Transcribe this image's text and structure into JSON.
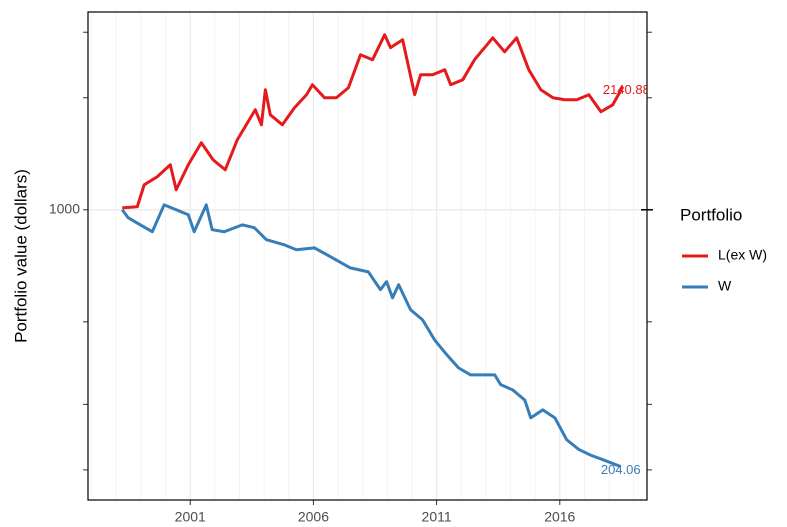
{
  "chart_data": {
    "type": "line",
    "y_label": "Portfolio value (dollars)",
    "legend_title": "Portfolio",
    "log_y": true,
    "grid": true,
    "legend": "right",
    "end_labels": true,
    "xlim": [
      1996.85,
      2019.54
    ],
    "xticks": [
      2001,
      2006,
      2011,
      2016
    ],
    "ylim": [
      166,
      3400
    ],
    "yticks": [
      1000
    ],
    "yminor_ticks": [
      200,
      300,
      500,
      2000,
      3000
    ],
    "series": [
      {
        "name": "L(ex W)",
        "color": "#e41a1c",
        "x": [
          1998.24,
          1998.85,
          1999.13,
          1999.66,
          2000.19,
          2000.43,
          2000.92,
          2001.45,
          2001.93,
          2002.42,
          2002.91,
          2003.64,
          2003.89,
          2004.05,
          2004.25,
          2004.74,
          2005.23,
          2005.72,
          2005.96,
          2006.45,
          2006.93,
          2007.42,
          2007.91,
          2008.4,
          2008.89,
          2009.13,
          2009.62,
          2010.11,
          2010.35,
          2010.84,
          2011.33,
          2011.57,
          2012.06,
          2012.54,
          2013.28,
          2013.76,
          2014.25,
          2014.74,
          2015.23,
          2015.72,
          2016.2,
          2016.69,
          2017.18,
          2017.67,
          2018.15,
          2018.56
        ],
        "values": [
          1012,
          1019,
          1167,
          1227,
          1321,
          1132,
          1321,
          1514,
          1362,
          1281,
          1542,
          1857,
          1692,
          2102,
          1800,
          1692,
          1880,
          2038,
          2168,
          2000,
          2000,
          2128,
          2610,
          2531,
          2953,
          2727,
          2864,
          2038,
          2306,
          2306,
          2379,
          2168,
          2235,
          2531,
          2898,
          2658,
          2898,
          2379,
          2102,
          2000,
          1975,
          1975,
          2038,
          1834,
          1915,
          2140.88
        ]
      },
      {
        "name": "W",
        "color": "#377eb8",
        "x": [
          1998.24,
          1998.48,
          1998.97,
          1999.46,
          1999.94,
          2000.43,
          2000.92,
          2001.16,
          2001.65,
          2001.89,
          2002.38,
          2003.11,
          2003.6,
          2004.09,
          2004.82,
          2005.31,
          2006.04,
          2006.77,
          2007.5,
          2008.23,
          2008.72,
          2008.97,
          2009.21,
          2009.46,
          2009.94,
          2010.43,
          2010.92,
          2011.41,
          2011.89,
          2012.38,
          2012.87,
          2013.36,
          2013.6,
          2014.09,
          2014.58,
          2014.82,
          2015.31,
          2015.8,
          2016.28,
          2016.77,
          2017.26,
          2017.75,
          2018.48
        ],
        "values": [
          1000,
          952,
          911,
          873,
          1031,
          1000,
          970,
          873,
          1031,
          884,
          873,
          911,
          895,
          831,
          805,
          781,
          790,
          743,
          698,
          681,
          610,
          641,
          580,
          629,
          539,
          506,
          447,
          408,
          376,
          360,
          360,
          360,
          339,
          328,
          308,
          276,
          290,
          276,
          241,
          227,
          219,
          213,
          204.06
        ]
      }
    ]
  }
}
